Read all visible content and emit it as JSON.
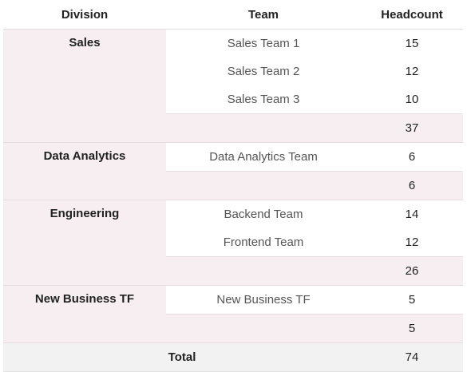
{
  "headers": {
    "division": "Division",
    "team": "Team",
    "headcount": "Headcount"
  },
  "groups": [
    {
      "division": "Sales",
      "teams": [
        {
          "name": "Sales Team 1",
          "headcount": "15"
        },
        {
          "name": "Sales Team 2",
          "headcount": "12"
        },
        {
          "name": "Sales Team 3",
          "headcount": "10"
        }
      ],
      "subtotal": "37"
    },
    {
      "division": "Data Analytics",
      "teams": [
        {
          "name": "Data Analytics Team",
          "headcount": "6"
        }
      ],
      "subtotal": "6"
    },
    {
      "division": "Engineering",
      "teams": [
        {
          "name": "Backend Team",
          "headcount": "14"
        },
        {
          "name": "Frontend Team",
          "headcount": "12"
        }
      ],
      "subtotal": "26"
    },
    {
      "division": "New Business TF",
      "teams": [
        {
          "name": "New Business TF",
          "headcount": "5"
        }
      ],
      "subtotal": "5"
    }
  ],
  "total": {
    "label": "Total",
    "headcount": "74"
  },
  "colors": {
    "group_bg": "#f6eef1",
    "total_bg": "#f2f2f2",
    "border": "#e6dde1"
  }
}
